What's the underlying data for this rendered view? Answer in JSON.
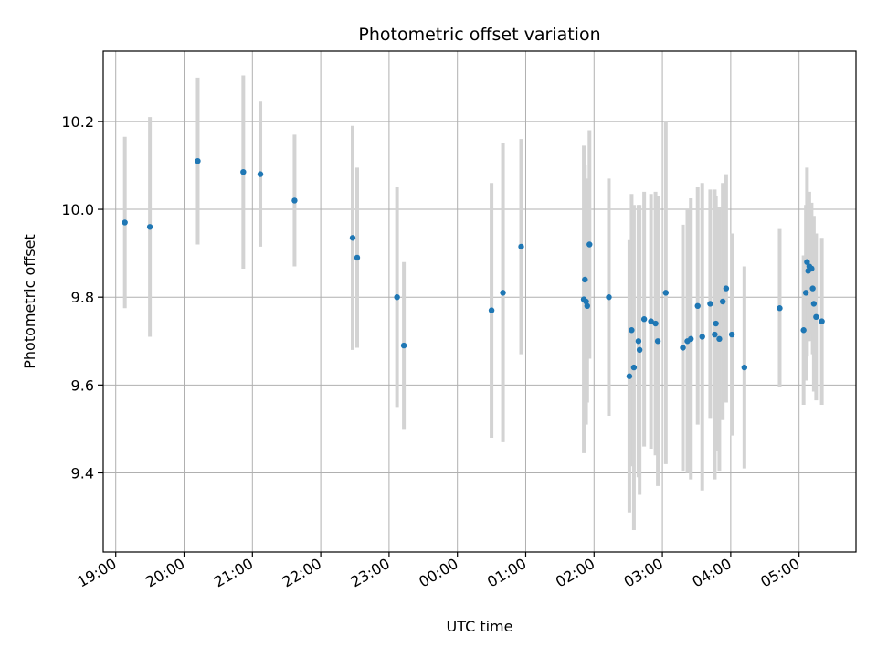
{
  "chart_data": {
    "type": "scatter",
    "title": "Photometric offset variation",
    "xlabel": "UTC time",
    "ylabel": "Photometric offset",
    "grid": true,
    "legend": "none",
    "x_unit": "UTC time (HH:MM)",
    "x_ticks": [
      "19:00",
      "20:00",
      "21:00",
      "22:00",
      "23:00",
      "00:00",
      "01:00",
      "02:00",
      "03:00",
      "04:00",
      "05:00"
    ],
    "y_ticks": [
      "9.4",
      "9.6",
      "9.8",
      "10.0",
      "10.2"
    ],
    "xlim": [
      "18:49",
      "05:50"
    ],
    "ylim": [
      9.22,
      10.36
    ],
    "colors": {
      "point": "#1f77b4",
      "errorbar": "#d3d3d3",
      "grid": "#b0b0b0"
    },
    "series": [
      {
        "x": [
          "19:08",
          "19:30",
          "20:12",
          "20:52",
          "21:07",
          "21:37",
          "22:28",
          "22:32",
          "23:07",
          "23:13",
          "00:30",
          "00:40",
          "00:56",
          "01:51",
          "01:52",
          "01:53",
          "01:54",
          "01:56",
          "02:13",
          "02:31",
          "02:33",
          "02:35",
          "02:39",
          "02:40",
          "02:44",
          "02:50",
          "02:54",
          "02:56",
          "03:03",
          "03:18",
          "03:22",
          "03:25",
          "03:31",
          "03:35",
          "03:42",
          "03:46",
          "03:47",
          "03:50",
          "03:53",
          "03:56",
          "04:01",
          "04:12",
          "04:43",
          "05:04",
          "05:06",
          "05:07",
          "05:08",
          "05:09",
          "05:11",
          "05:12",
          "05:13",
          "05:15",
          "05:20"
        ],
        "y": [
          9.97,
          9.96,
          10.11,
          10.085,
          10.08,
          10.02,
          9.935,
          9.89,
          9.8,
          9.69,
          9.77,
          9.81,
          9.915,
          9.795,
          9.84,
          9.79,
          9.78,
          9.92,
          9.8,
          9.62,
          9.725,
          9.64,
          9.7,
          9.68,
          9.75,
          9.745,
          9.74,
          9.7,
          9.81,
          9.685,
          9.7,
          9.705,
          9.78,
          9.71,
          9.785,
          9.715,
          9.74,
          9.705,
          9.79,
          9.82,
          9.715,
          9.64,
          9.775,
          9.725,
          9.81,
          9.88,
          9.86,
          9.87,
          9.865,
          9.82,
          9.785,
          9.755,
          9.745
        ],
        "yerr": [
          0.195,
          0.25,
          0.19,
          0.22,
          0.165,
          0.15,
          0.255,
          0.205,
          0.25,
          0.19,
          0.29,
          0.34,
          0.245,
          0.35,
          0.26,
          0.28,
          0.22,
          0.26,
          0.27,
          0.31,
          0.31,
          0.37,
          0.31,
          0.33,
          0.29,
          0.29,
          0.3,
          0.33,
          0.39,
          0.28,
          0.3,
          0.32,
          0.27,
          0.35,
          0.26,
          0.33,
          0.29,
          0.3,
          0.27,
          0.26,
          0.23,
          0.23,
          0.18,
          0.17,
          0.2,
          0.215,
          0.16,
          0.17,
          0.15,
          0.15,
          0.2,
          0.19,
          0.19
        ]
      }
    ]
  }
}
